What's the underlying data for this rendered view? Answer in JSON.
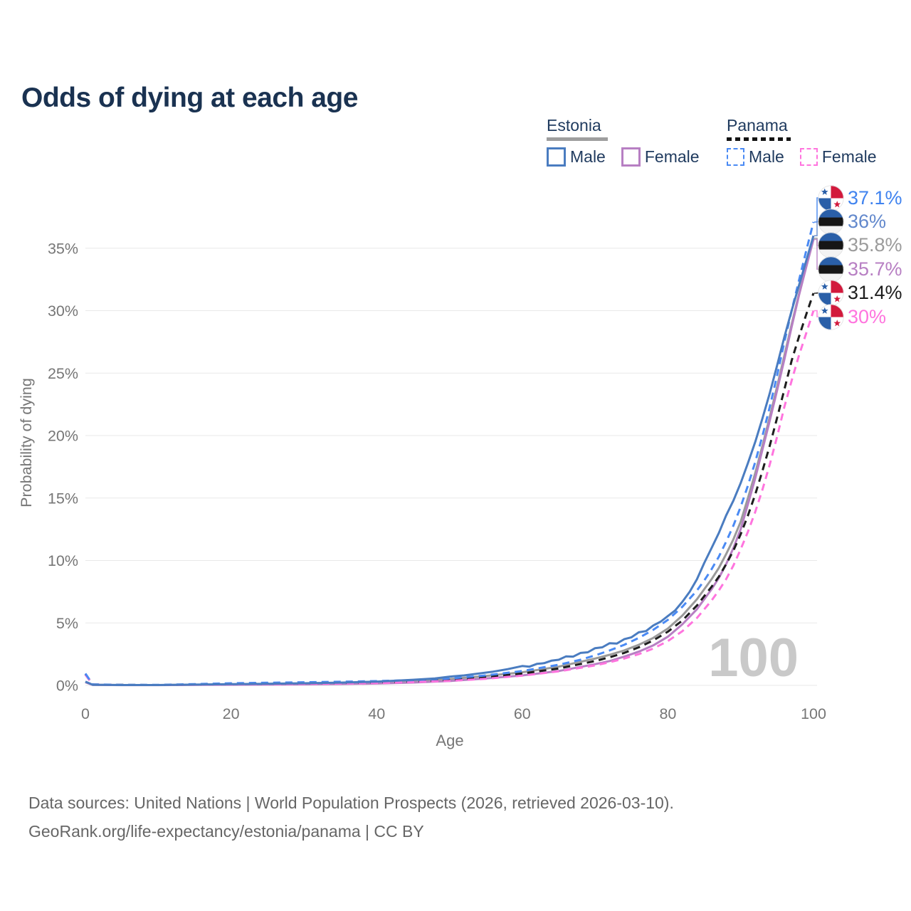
{
  "page": {
    "title": "Odds of dying at each age"
  },
  "legend": {
    "groups": [
      {
        "name": "Estonia",
        "underline_style": "solid",
        "underline_color": "#9e9e9e",
        "items": [
          {
            "label": "Male",
            "color": "#4a7cc0",
            "dash": "solid"
          },
          {
            "label": "Female",
            "color": "#b77fc3",
            "dash": "solid"
          }
        ]
      },
      {
        "name": "Panama",
        "underline_style": "dashed",
        "underline_color": "#141414",
        "items": [
          {
            "label": "Male",
            "color": "#4a8af4",
            "dash": "dashed"
          },
          {
            "label": "Female",
            "color": "#ff74de",
            "dash": "dashed"
          }
        ]
      }
    ]
  },
  "footer": {
    "line1": "Data sources: United Nations | World Population Prospects (2026, retrieved 2026-03-10).",
    "line2": "GeoRank.org/life-expectancy/estonia/panama | CC BY"
  },
  "chart_data": {
    "type": "line",
    "title": "Odds of dying at each age",
    "xlabel": "Age",
    "ylabel": "Probability of dying",
    "unit": "%",
    "xlim": [
      0,
      100
    ],
    "ylim": [
      0,
      37.5
    ],
    "grid": "horizontal",
    "legend_position": "top-right",
    "watermark": "100",
    "xticks": [
      {
        "label": "0",
        "value": 0
      },
      {
        "label": "20",
        "value": 20
      },
      {
        "label": "40",
        "value": 40
      },
      {
        "label": "60",
        "value": 60
      },
      {
        "label": "80",
        "value": 80
      },
      {
        "label": "100",
        "value": 100
      }
    ],
    "yticks": [
      {
        "label": "0%",
        "value": 0
      },
      {
        "label": "5%",
        "value": 5
      },
      {
        "label": "10%",
        "value": 10
      },
      {
        "label": "15%",
        "value": 15
      },
      {
        "label": "20%",
        "value": 20
      },
      {
        "label": "25%",
        "value": 25
      },
      {
        "label": "30%",
        "value": 30
      },
      {
        "label": "35%",
        "value": 35
      }
    ],
    "series": [
      {
        "name": "Estonia Both sexes",
        "country": "Estonia",
        "color": "#9a9a9a",
        "dash": "solid",
        "end_value_label": "35.8%",
        "points": [
          [
            0,
            0.28
          ],
          [
            1,
            0.04
          ],
          [
            5,
            0.03
          ],
          [
            10,
            0.03
          ],
          [
            15,
            0.05
          ],
          [
            20,
            0.08
          ],
          [
            25,
            0.1
          ],
          [
            30,
            0.12
          ],
          [
            35,
            0.16
          ],
          [
            40,
            0.22
          ],
          [
            45,
            0.33
          ],
          [
            50,
            0.5
          ],
          [
            55,
            0.75
          ],
          [
            60,
            1.05
          ],
          [
            65,
            1.5
          ],
          [
            70,
            2.15
          ],
          [
            72,
            2.45
          ],
          [
            74,
            2.8
          ],
          [
            76,
            3.25
          ],
          [
            78,
            3.8
          ],
          [
            80,
            4.55
          ],
          [
            82,
            5.6
          ],
          [
            84,
            6.9
          ],
          [
            86,
            8.5
          ],
          [
            87,
            9.4
          ],
          [
            88,
            10.5
          ],
          [
            89,
            11.7
          ],
          [
            90,
            13.1
          ],
          [
            91,
            15.0
          ],
          [
            92,
            17.0
          ],
          [
            93,
            19.2
          ],
          [
            94,
            21.5
          ],
          [
            95,
            23.9
          ],
          [
            96,
            26.4
          ],
          [
            97,
            28.9
          ],
          [
            98,
            31.3
          ],
          [
            99,
            33.6
          ],
          [
            100,
            35.8
          ]
        ]
      },
      {
        "name": "Estonia Female",
        "country": "Estonia",
        "color": "#b77fc3",
        "dash": "solid",
        "end_value_label": "35.7%",
        "points": [
          [
            0,
            0.25
          ],
          [
            1,
            0.04
          ],
          [
            5,
            0.02
          ],
          [
            10,
            0.02
          ],
          [
            15,
            0.04
          ],
          [
            20,
            0.05
          ],
          [
            25,
            0.06
          ],
          [
            30,
            0.08
          ],
          [
            35,
            0.11
          ],
          [
            40,
            0.15
          ],
          [
            45,
            0.23
          ],
          [
            50,
            0.35
          ],
          [
            55,
            0.55
          ],
          [
            60,
            0.8
          ],
          [
            65,
            1.15
          ],
          [
            70,
            1.7
          ],
          [
            72,
            1.95
          ],
          [
            74,
            2.3
          ],
          [
            76,
            2.7
          ],
          [
            78,
            3.2
          ],
          [
            80,
            3.9
          ],
          [
            82,
            4.9
          ],
          [
            84,
            6.1
          ],
          [
            86,
            7.7
          ],
          [
            87,
            8.6
          ],
          [
            88,
            9.7
          ],
          [
            89,
            11.0
          ],
          [
            90,
            12.5
          ],
          [
            91,
            14.5
          ],
          [
            92,
            16.6
          ],
          [
            93,
            18.9
          ],
          [
            94,
            21.2
          ],
          [
            95,
            23.6
          ],
          [
            96,
            26.1
          ],
          [
            97,
            28.7
          ],
          [
            98,
            31.2
          ],
          [
            99,
            33.5
          ],
          [
            100,
            35.7
          ]
        ]
      },
      {
        "name": "Panama Both sexes",
        "country": "Panama",
        "color": "#1d1d1d",
        "dash": "dashed",
        "end_value_label": "31.4%",
        "points": [
          [
            0,
            0.9
          ],
          [
            1,
            0.07
          ],
          [
            5,
            0.04
          ],
          [
            10,
            0.03
          ],
          [
            15,
            0.07
          ],
          [
            20,
            0.11
          ],
          [
            25,
            0.14
          ],
          [
            30,
            0.17
          ],
          [
            35,
            0.2
          ],
          [
            40,
            0.25
          ],
          [
            45,
            0.32
          ],
          [
            50,
            0.44
          ],
          [
            55,
            0.65
          ],
          [
            60,
            0.95
          ],
          [
            65,
            1.35
          ],
          [
            70,
            1.95
          ],
          [
            72,
            2.25
          ],
          [
            74,
            2.6
          ],
          [
            76,
            3.05
          ],
          [
            78,
            3.6
          ],
          [
            80,
            4.3
          ],
          [
            82,
            5.2
          ],
          [
            84,
            6.4
          ],
          [
            86,
            7.9
          ],
          [
            87,
            8.7
          ],
          [
            88,
            9.7
          ],
          [
            89,
            10.8
          ],
          [
            90,
            12.1
          ],
          [
            91,
            13.6
          ],
          [
            92,
            15.3
          ],
          [
            93,
            17.2
          ],
          [
            94,
            19.2
          ],
          [
            95,
            21.4
          ],
          [
            96,
            23.7
          ],
          [
            97,
            26.0
          ],
          [
            98,
            27.9
          ],
          [
            99,
            29.7
          ],
          [
            100,
            31.4
          ]
        ]
      },
      {
        "name": "Panama Female",
        "country": "Panama",
        "color": "#ff74de",
        "dash": "dashed",
        "end_value_label": "30%",
        "points": [
          [
            0,
            0.85
          ],
          [
            1,
            0.06
          ],
          [
            5,
            0.03
          ],
          [
            10,
            0.03
          ],
          [
            15,
            0.05
          ],
          [
            20,
            0.08
          ],
          [
            25,
            0.1
          ],
          [
            30,
            0.12
          ],
          [
            35,
            0.15
          ],
          [
            40,
            0.19
          ],
          [
            45,
            0.26
          ],
          [
            50,
            0.36
          ],
          [
            55,
            0.53
          ],
          [
            60,
            0.78
          ],
          [
            65,
            1.12
          ],
          [
            70,
            1.6
          ],
          [
            72,
            1.85
          ],
          [
            74,
            2.15
          ],
          [
            76,
            2.5
          ],
          [
            78,
            2.95
          ],
          [
            80,
            3.55
          ],
          [
            82,
            4.35
          ],
          [
            84,
            5.4
          ],
          [
            86,
            6.8
          ],
          [
            87,
            7.6
          ],
          [
            88,
            8.5
          ],
          [
            89,
            9.6
          ],
          [
            90,
            10.9
          ],
          [
            91,
            12.3
          ],
          [
            92,
            13.9
          ],
          [
            93,
            15.7
          ],
          [
            94,
            17.7
          ],
          [
            95,
            19.9
          ],
          [
            96,
            22.3
          ],
          [
            97,
            24.4
          ],
          [
            98,
            26.4
          ],
          [
            99,
            28.2
          ],
          [
            100,
            30.0
          ]
        ]
      },
      {
        "name": "Panama Male",
        "country": "Panama",
        "color": "#4a8af4",
        "dash": "dashed",
        "end_value_label": "37.1%",
        "points": [
          [
            0,
            0.95
          ],
          [
            1,
            0.08
          ],
          [
            5,
            0.04
          ],
          [
            10,
            0.04
          ],
          [
            15,
            0.1
          ],
          [
            20,
            0.17
          ],
          [
            25,
            0.21
          ],
          [
            30,
            0.25
          ],
          [
            35,
            0.29
          ],
          [
            40,
            0.34
          ],
          [
            45,
            0.42
          ],
          [
            50,
            0.55
          ],
          [
            55,
            0.8
          ],
          [
            60,
            1.15
          ],
          [
            65,
            1.65
          ],
          [
            68,
            2.05
          ],
          [
            70,
            2.4
          ],
          [
            72,
            2.8
          ],
          [
            74,
            3.25
          ],
          [
            76,
            3.8
          ],
          [
            78,
            4.45
          ],
          [
            80,
            5.25
          ],
          [
            82,
            6.3
          ],
          [
            84,
            7.6
          ],
          [
            85,
            8.4
          ],
          [
            86,
            9.3
          ],
          [
            87,
            10.3
          ],
          [
            88,
            11.5
          ],
          [
            89,
            12.8
          ],
          [
            90,
            14.3
          ],
          [
            91,
            16.0
          ],
          [
            92,
            17.9
          ],
          [
            93,
            20.0
          ],
          [
            94,
            22.3
          ],
          [
            95,
            24.8
          ],
          [
            96,
            27.5
          ],
          [
            97,
            30.0
          ],
          [
            98,
            32.4
          ],
          [
            99,
            34.8
          ],
          [
            100,
            37.1
          ]
        ]
      },
      {
        "name": "Estonia Male",
        "country": "Estonia",
        "color": "#4a7cc0",
        "dash": "solid",
        "end_value_label": "36%",
        "points": [
          [
            0,
            0.3
          ],
          [
            1,
            0.05
          ],
          [
            5,
            0.03
          ],
          [
            10,
            0.03
          ],
          [
            15,
            0.06
          ],
          [
            20,
            0.1
          ],
          [
            25,
            0.13
          ],
          [
            30,
            0.17
          ],
          [
            35,
            0.22
          ],
          [
            40,
            0.3
          ],
          [
            45,
            0.45
          ],
          [
            48,
            0.55
          ],
          [
            50,
            0.7
          ],
          [
            52,
            0.8
          ],
          [
            54,
            0.95
          ],
          [
            56,
            1.1
          ],
          [
            58,
            1.3
          ],
          [
            60,
            1.55
          ],
          [
            61,
            1.5
          ],
          [
            62,
            1.72
          ],
          [
            63,
            1.78
          ],
          [
            64,
            1.98
          ],
          [
            65,
            2.05
          ],
          [
            66,
            2.32
          ],
          [
            67,
            2.3
          ],
          [
            68,
            2.6
          ],
          [
            69,
            2.65
          ],
          [
            70,
            2.98
          ],
          [
            71,
            3.05
          ],
          [
            72,
            3.38
          ],
          [
            73,
            3.35
          ],
          [
            74,
            3.7
          ],
          [
            75,
            3.85
          ],
          [
            76,
            4.25
          ],
          [
            77,
            4.35
          ],
          [
            78,
            4.8
          ],
          [
            79,
            5.1
          ],
          [
            80,
            5.55
          ],
          [
            81,
            6.0
          ],
          [
            82,
            6.7
          ],
          [
            83,
            7.5
          ],
          [
            84,
            8.5
          ],
          [
            85,
            9.8
          ],
          [
            86,
            11.0
          ],
          [
            87,
            12.2
          ],
          [
            88,
            13.6
          ],
          [
            89,
            14.8
          ],
          [
            90,
            16.2
          ],
          [
            91,
            17.8
          ],
          [
            92,
            19.5
          ],
          [
            93,
            21.4
          ],
          [
            94,
            23.4
          ],
          [
            95,
            25.6
          ],
          [
            96,
            27.9
          ],
          [
            97,
            30.0
          ],
          [
            98,
            32.0
          ],
          [
            99,
            34.0
          ],
          [
            100,
            36.0
          ]
        ]
      }
    ],
    "end_labels": [
      {
        "text": "37.1%",
        "value": 37.1,
        "color": "#4083ef",
        "flag": "panama",
        "series": "Panama Male"
      },
      {
        "text": "36%",
        "value": 36.0,
        "color": "#6288cc",
        "flag": "estonia",
        "series": "Estonia Male"
      },
      {
        "text": "35.8%",
        "value": 35.8,
        "color": "#9b9b9b",
        "flag": "estonia",
        "series": "Estonia Both sexes"
      },
      {
        "text": "35.7%",
        "value": 35.7,
        "color": "#b77fc3",
        "flag": "estonia",
        "series": "Estonia Female"
      },
      {
        "text": "31.4%",
        "value": 31.4,
        "color": "#1d1d1d",
        "flag": "panama",
        "series": "Panama Both sexes"
      },
      {
        "text": "30%",
        "value": 30.0,
        "color": "#ff74de",
        "flag": "panama",
        "series": "Panama Female"
      }
    ]
  }
}
